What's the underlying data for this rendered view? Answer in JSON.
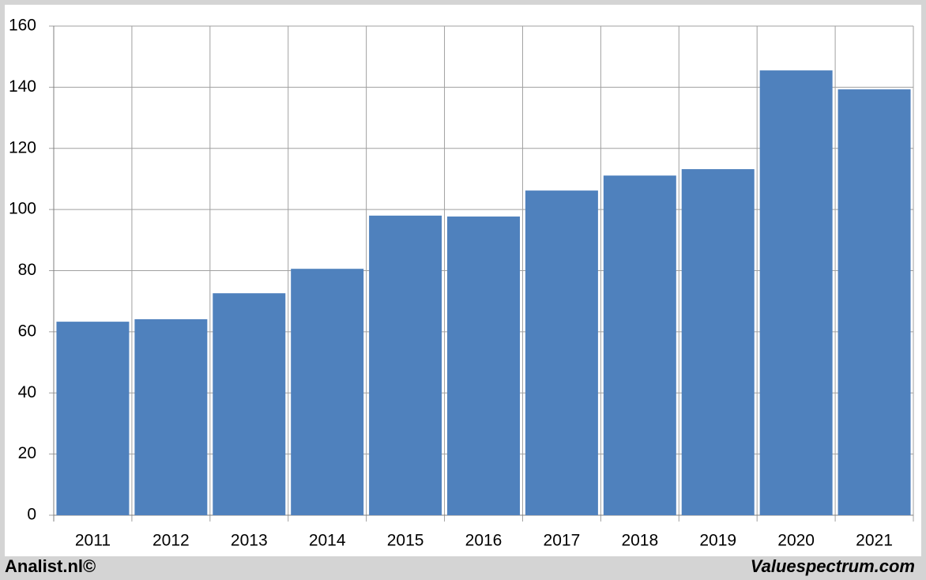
{
  "chart_data": {
    "type": "bar",
    "categories": [
      "2011",
      "2012",
      "2013",
      "2014",
      "2015",
      "2016",
      "2017",
      "2018",
      "2019",
      "2020",
      "2021"
    ],
    "values": [
      63.3,
      64.1,
      72.6,
      80.6,
      98.0,
      97.7,
      106.2,
      111.1,
      113.2,
      145.5,
      139.3
    ],
    "color": "#4f81bd",
    "ylim": [
      0,
      160
    ],
    "yticks": [
      0,
      20,
      40,
      60,
      80,
      100,
      120,
      140,
      160
    ],
    "grid": true
  },
  "footer": {
    "left": "Analist.nl©",
    "right": "Valuespectrum.com"
  }
}
